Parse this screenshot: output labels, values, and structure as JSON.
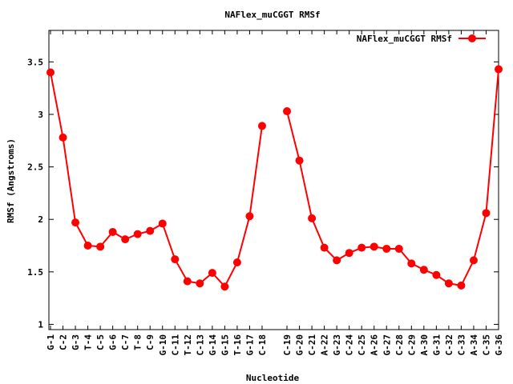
{
  "chart_data": {
    "type": "line",
    "title": "NAFlex_muCGGT RMSf",
    "xlabel": "Nucleotide",
    "ylabel": "RMSf (Angstroms)",
    "ylim": [
      0.95,
      3.8
    ],
    "yticks": [
      "1",
      "1.5",
      "2",
      "2.5",
      "3",
      "3.5"
    ],
    "ytick_values": [
      1,
      1.5,
      2,
      2.5,
      3,
      3.5
    ],
    "grid": false,
    "legend_position": "top-right",
    "color": "#ff0000",
    "series": [
      {
        "name": "NAFlex_muCGGT RMSf",
        "segments": [
          {
            "categories": [
              "G-1",
              "C-2",
              "G-3",
              "T-4",
              "C-5",
              "G-6",
              "C-7",
              "T-8",
              "C-9",
              "G-10",
              "C-11",
              "T-12",
              "C-13",
              "G-14",
              "G-15",
              "T-16",
              "G-17",
              "C-18"
            ],
            "values": [
              3.4,
              2.78,
              1.97,
              1.75,
              1.74,
              1.88,
              1.81,
              1.86,
              1.89,
              1.96,
              1.62,
              1.41,
              1.39,
              1.49,
              1.36,
              1.59,
              2.03,
              2.89
            ]
          },
          {
            "categories": [
              "C-19",
              "G-20",
              "C-21",
              "A-22",
              "G-23",
              "C-24",
              "C-25",
              "A-26",
              "G-27",
              "C-28",
              "C-29",
              "A-30",
              "G-31",
              "C-32",
              "C-33",
              "A-34",
              "C-35",
              "G-36"
            ],
            "values": [
              3.03,
              2.56,
              2.01,
              1.73,
              1.61,
              1.68,
              1.73,
              1.74,
              1.72,
              1.72,
              1.58,
              1.52,
              1.47,
              1.39,
              1.37,
              1.61,
              2.06,
              3.43
            ]
          }
        ]
      }
    ]
  }
}
